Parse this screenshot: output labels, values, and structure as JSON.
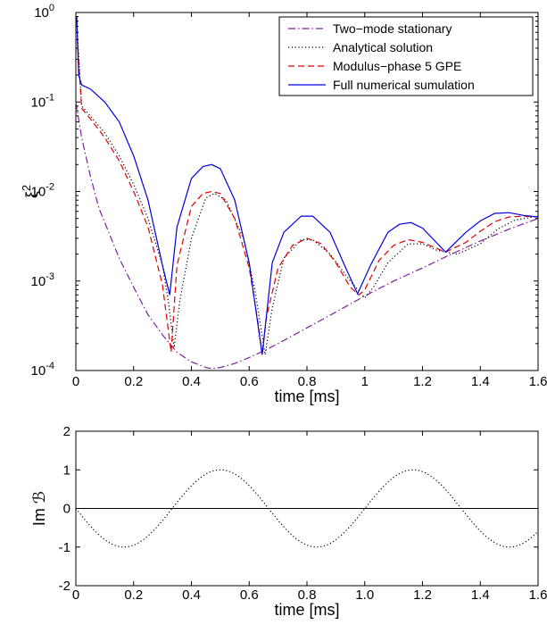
{
  "chart_data": [
    {
      "type": "line",
      "xlabel": "time [ms]",
      "ylabel": "ξ",
      "ylabel_superscript": "2",
      "xlim": [
        0,
        1.6
      ],
      "ylim": [
        0.0001,
        1
      ],
      "yscale": "log",
      "grid": false,
      "legend_position": "top-right",
      "x_ticks": [
        "0",
        "0.2",
        "0.4",
        "0.6",
        "0.8",
        "1",
        "1.2",
        "1.4",
        "1.6"
      ],
      "y_ticks": [
        {
          "base": "10",
          "exp": "-4",
          "value": 0.0001
        },
        {
          "base": "10",
          "exp": "-3",
          "value": 0.001
        },
        {
          "base": "10",
          "exp": "-2",
          "value": 0.01
        },
        {
          "base": "10",
          "exp": "-1",
          "value": 0.1
        },
        {
          "base": "10",
          "exp": "0",
          "value": 1
        }
      ],
      "series": [
        {
          "name": "Two−mode stationary",
          "color": "#8020a0",
          "style": "dashdot",
          "x": [
            0,
            0.02,
            0.05,
            0.08,
            0.1,
            0.15,
            0.2,
            0.25,
            0.3,
            0.35,
            0.4,
            0.45,
            0.47,
            0.5,
            0.55,
            0.6,
            0.65,
            0.7,
            0.8,
            0.9,
            1.0,
            1.1,
            1.2,
            1.3,
            1.4,
            1.5,
            1.6
          ],
          "y": [
            0.1,
            0.04,
            0.015,
            0.0065,
            0.0045,
            0.0018,
            0.00085,
            0.00042,
            0.00025,
            0.00016,
            0.000125,
            0.000108,
            0.000105,
            0.000108,
            0.00012,
            0.00014,
            0.000165,
            0.0002,
            0.0003,
            0.00045,
            0.00068,
            0.001,
            0.0014,
            0.002,
            0.0028,
            0.0038,
            0.005
          ]
        },
        {
          "name": "Analytical solution",
          "color": "#000000",
          "style": "dotted",
          "x": [
            0.005,
            0.02,
            0.05,
            0.1,
            0.15,
            0.2,
            0.25,
            0.3,
            0.32,
            0.34,
            0.36,
            0.4,
            0.45,
            0.48,
            0.52,
            0.58,
            0.62,
            0.655,
            0.68,
            0.72,
            0.78,
            0.82,
            0.88,
            0.95,
            1.0,
            1.03,
            1.08,
            1.15,
            1.2,
            1.25,
            1.32,
            1.4,
            1.46,
            1.52,
            1.6
          ],
          "y": [
            0.6,
            0.09,
            0.07,
            0.045,
            0.025,
            0.012,
            0.005,
            0.0015,
            0.0006,
            0.00018,
            0.0006,
            0.003,
            0.0085,
            0.0095,
            0.008,
            0.003,
            0.0008,
            0.00015,
            0.0005,
            0.0018,
            0.0029,
            0.0029,
            0.002,
            0.001,
            0.00065,
            0.00085,
            0.0016,
            0.0026,
            0.0026,
            0.0022,
            0.002,
            0.0026,
            0.0038,
            0.0048,
            0.0053
          ]
        },
        {
          "name": "Modulus−phase 5 GPE",
          "color": "#e00000",
          "style": "dashed",
          "x": [
            0.005,
            0.02,
            0.05,
            0.1,
            0.15,
            0.2,
            0.25,
            0.3,
            0.31,
            0.33,
            0.35,
            0.4,
            0.44,
            0.47,
            0.5,
            0.55,
            0.6,
            0.63,
            0.645,
            0.66,
            0.7,
            0.75,
            0.8,
            0.85,
            0.9,
            0.95,
            0.98,
            1.0,
            1.05,
            1.1,
            1.15,
            1.2,
            1.28,
            1.35,
            1.4,
            1.45,
            1.5,
            1.55,
            1.6
          ],
          "y": [
            0.5,
            0.085,
            0.065,
            0.04,
            0.022,
            0.01,
            0.004,
            0.0009,
            0.0005,
            0.00016,
            0.0015,
            0.0068,
            0.0095,
            0.01,
            0.0095,
            0.005,
            0.0014,
            0.00035,
            0.00015,
            0.0004,
            0.0014,
            0.0025,
            0.003,
            0.0026,
            0.0016,
            0.00085,
            0.0007,
            0.0008,
            0.0017,
            0.0025,
            0.0029,
            0.0027,
            0.0021,
            0.0027,
            0.0036,
            0.0046,
            0.0052,
            0.0053,
            0.0052
          ]
        },
        {
          "name": "Full numerical sumulation",
          "color": "#0000e0",
          "style": "solid",
          "x": [
            0.003,
            0.01,
            0.02,
            0.05,
            0.1,
            0.15,
            0.2,
            0.25,
            0.3,
            0.325,
            0.35,
            0.4,
            0.44,
            0.47,
            0.5,
            0.55,
            0.6,
            0.645,
            0.68,
            0.72,
            0.78,
            0.82,
            0.88,
            0.93,
            0.975,
            1.02,
            1.08,
            1.12,
            1.16,
            1.2,
            1.28,
            1.35,
            1.4,
            1.45,
            1.5,
            1.55,
            1.6
          ],
          "y": [
            0.9,
            0.2,
            0.155,
            0.14,
            0.1,
            0.06,
            0.025,
            0.008,
            0.0015,
            0.0007,
            0.004,
            0.014,
            0.019,
            0.02,
            0.018,
            0.008,
            0.0016,
            0.00015,
            0.0016,
            0.0035,
            0.0053,
            0.0053,
            0.0035,
            0.0015,
            0.00072,
            0.0015,
            0.0035,
            0.0043,
            0.0045,
            0.0039,
            0.0021,
            0.0035,
            0.0047,
            0.0057,
            0.0058,
            0.0054,
            0.0052
          ]
        }
      ]
    },
    {
      "type": "line",
      "xlabel": "time [ms]",
      "ylabel": "Im ℬ",
      "xlim": [
        0,
        1.6
      ],
      "ylim": [
        -2,
        2
      ],
      "grid": false,
      "x_ticks": [
        "0",
        "0.2",
        "0.4",
        "0.6",
        "0.8",
        "1.0",
        "1.2",
        "1.4",
        "1.6"
      ],
      "y_ticks": [
        "-2",
        "-1",
        "0",
        "1",
        "2"
      ],
      "zero_line": true,
      "series": [
        {
          "color": "#000000",
          "style": "dotted",
          "amplitude": 1.0,
          "period_ms": 0.667,
          "x": [
            0,
            0.083,
            0.167,
            0.25,
            0.333,
            0.417,
            0.5,
            0.583,
            0.667,
            0.75,
            0.833,
            0.917,
            1.0,
            1.083,
            1.167,
            1.25,
            1.333,
            1.417,
            1.5,
            1.583,
            1.6
          ],
          "y": [
            0,
            -0.71,
            -1,
            -0.71,
            0,
            0.71,
            1,
            0.71,
            0,
            -0.71,
            -1,
            -0.71,
            0,
            0.71,
            1,
            0.71,
            0,
            -0.71,
            -1,
            -0.71,
            -0.5
          ]
        }
      ]
    }
  ]
}
